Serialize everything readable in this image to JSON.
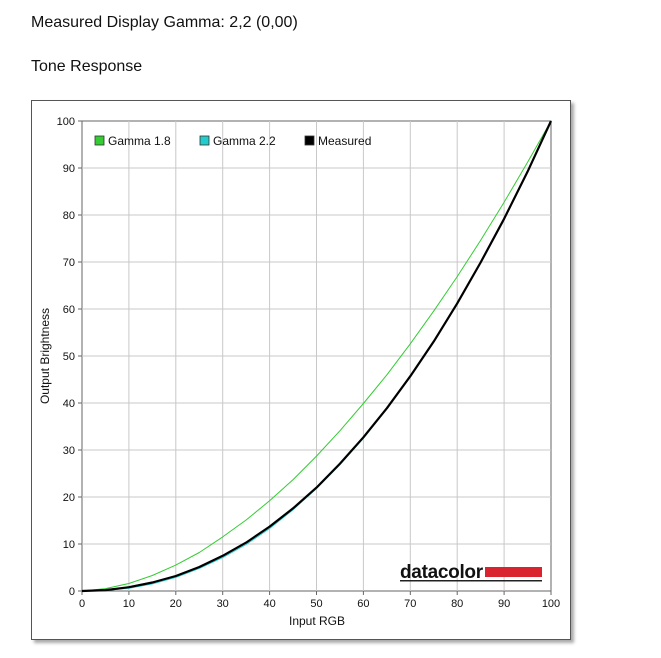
{
  "header": {
    "measured_gamma": "Measured Display Gamma: 2,2 (0,00)",
    "section_title": "Tone Response"
  },
  "logo": {
    "text": "datacolor",
    "accent_color": "#d9232e"
  },
  "chart_data": {
    "type": "line",
    "xlabel": "Input RGB",
    "ylabel": "Output Brightness",
    "xlim": [
      0,
      100
    ],
    "ylim": [
      0,
      100
    ],
    "xticks": [
      0,
      10,
      20,
      30,
      40,
      50,
      60,
      70,
      80,
      90,
      100
    ],
    "yticks": [
      0,
      10,
      20,
      30,
      40,
      50,
      60,
      70,
      80,
      90,
      100
    ],
    "grid": true,
    "legend_position": "top-left",
    "x": [
      0,
      5,
      10,
      15,
      20,
      25,
      30,
      35,
      40,
      45,
      50,
      55,
      60,
      65,
      70,
      75,
      80,
      85,
      90,
      95,
      100
    ],
    "series": [
      {
        "name": "Gamma 1.8",
        "color": "#33cc33",
        "width": 1,
        "values": [
          0,
          0.5,
          1.6,
          3.3,
          5.5,
          8.2,
          11.5,
          15.1,
          19.2,
          23.7,
          28.7,
          34.1,
          39.9,
          46.0,
          52.6,
          59.6,
          66.9,
          74.6,
          82.7,
          91.2,
          100
        ]
      },
      {
        "name": "Gamma 2.2",
        "color": "#22cccc",
        "width": 1,
        "values": [
          0,
          0.1,
          0.6,
          1.5,
          2.9,
          4.8,
          7.1,
          9.9,
          13.3,
          17.3,
          21.8,
          26.9,
          32.5,
          38.8,
          45.6,
          53.1,
          61.2,
          69.9,
          79.3,
          89.3,
          100
        ]
      },
      {
        "name": "Measured",
        "color": "#000000",
        "width": 2.2,
        "values": [
          0,
          0.2,
          0.8,
          1.8,
          3.2,
          5.1,
          7.5,
          10.3,
          13.7,
          17.6,
          22.0,
          27.1,
          32.7,
          38.9,
          45.7,
          53.1,
          61.2,
          69.9,
          79.2,
          89.2,
          100
        ]
      }
    ]
  }
}
